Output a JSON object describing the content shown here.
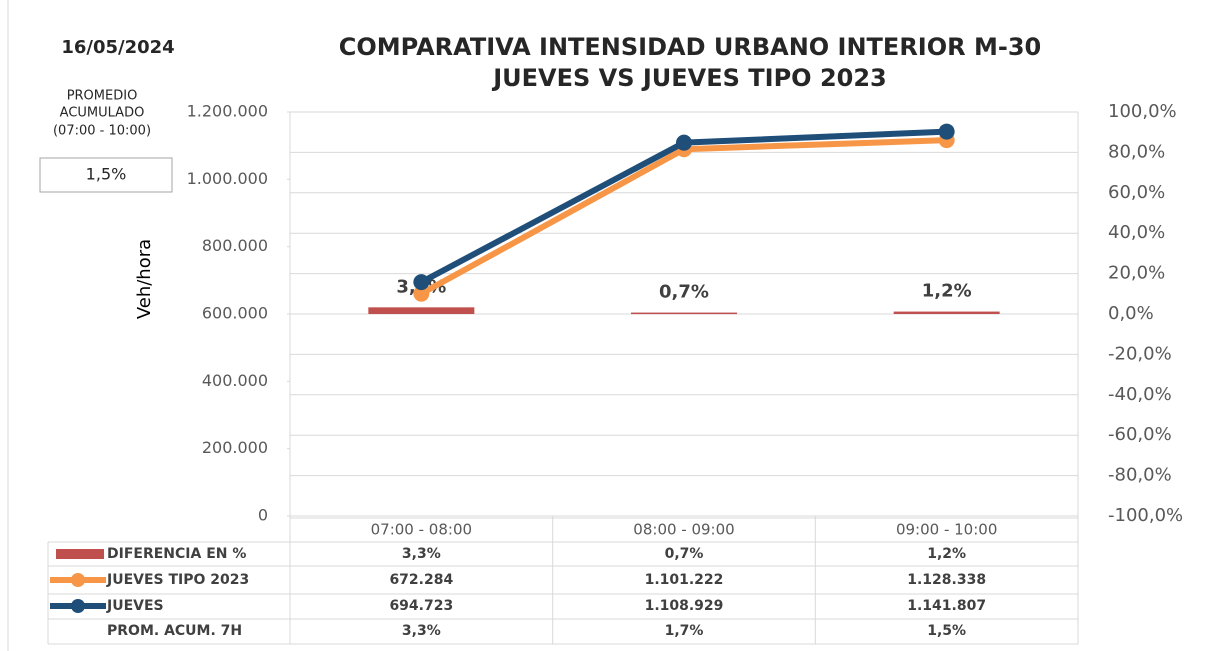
{
  "chart_data": {
    "type": "combo",
    "date": "16/05/2024",
    "title": [
      "COMPARATIVA INTENSIDAD URBANO INTERIOR M-30",
      "JUEVES VS JUEVES TIPO 2023"
    ],
    "summary_box": {
      "label": [
        "PROMEDIO",
        "ACUMULADO",
        "(07:00 - 10:00)"
      ],
      "value": "1,5%"
    },
    "ylabel": "Veh/hora",
    "categories": [
      "07:00 - 08:00",
      "08:00 - 09:00",
      "09:00 - 10:00"
    ],
    "ylim": [
      0,
      1200000
    ],
    "yticks": [
      0,
      {
        "value": 200000,
        "label": "200.000"
      },
      {
        "value": 400000,
        "label": "400.000"
      },
      {
        "value": 600000,
        "label": "600.000"
      },
      {
        "value": 800000,
        "label": "800.000"
      },
      {
        "value": 1000000,
        "label": "1.000.000"
      },
      {
        "value": 1200000,
        "label": "1.200.000"
      }
    ],
    "y2lim": [
      -100,
      100
    ],
    "y2ticks": [
      {
        "value": -100,
        "label": "-100,0%"
      },
      {
        "value": -80,
        "label": "-80,0%"
      },
      {
        "value": -60,
        "label": "-60,0%"
      },
      {
        "value": -40,
        "label": "-40,0%"
      },
      {
        "value": -20,
        "label": "-20,0%"
      },
      {
        "value": 0,
        "label": "0,0%"
      },
      {
        "value": 20,
        "label": "20,0%"
      },
      {
        "value": 40,
        "label": "40,0%"
      },
      {
        "value": 60,
        "label": "60,0%"
      },
      {
        "value": 80,
        "label": "80,0%"
      },
      {
        "value": 100,
        "label": "100,0%"
      }
    ],
    "grid": true,
    "series": [
      {
        "name": "DIFERENCIA EN %",
        "type": "bar",
        "axis": "y2",
        "color": "#c0504d",
        "values": [
          3.3,
          0.7,
          1.2
        ],
        "value_labels": [
          "3,3%",
          "0,7%",
          "1,2%"
        ]
      },
      {
        "name": "JUEVES TIPO 2023",
        "type": "line",
        "color": "#f79646",
        "values": [
          672284,
          1101222,
          1128338
        ],
        "value_labels": [
          "672.284",
          "1.101.222",
          "1.128.338"
        ]
      },
      {
        "name": "JUEVES",
        "type": "line",
        "color": "#1f4e79",
        "values": [
          694723,
          1108929,
          1141807
        ],
        "value_labels": [
          "694.723",
          "1.108.929",
          "1.141.807"
        ]
      }
    ],
    "extra_row": {
      "name": "PROM. ACUM. 7H",
      "values": [
        "3,3%",
        "1,7%",
        "1,5%"
      ]
    }
  }
}
